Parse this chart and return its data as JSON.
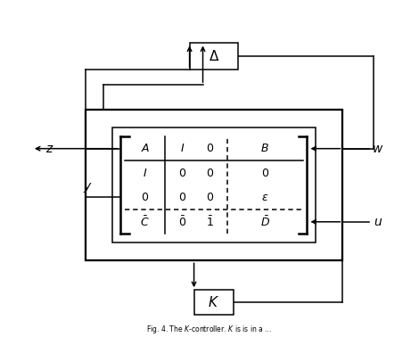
{
  "background_color": "#ffffff",
  "fig_width": 4.7,
  "fig_height": 3.78,
  "dpi": 100,
  "matrix_rows": [
    [
      "A",
      "I",
      "0",
      "B"
    ],
    [
      "I",
      "0",
      "0",
      "0"
    ],
    [
      "0",
      "0",
      "0",
      "\\epsilon"
    ],
    [
      "\\bar{C}",
      "\\bar{0}",
      "\\bar{1}",
      "\\bar{D}"
    ]
  ],
  "delta_label": "\\Delta",
  "k_label": "K",
  "z_label": "z",
  "y_label": "y",
  "w_label": "w",
  "u_label": "u",
  "caption": "Fig. 4. The $K$-controller. $K$ is is in a ..."
}
